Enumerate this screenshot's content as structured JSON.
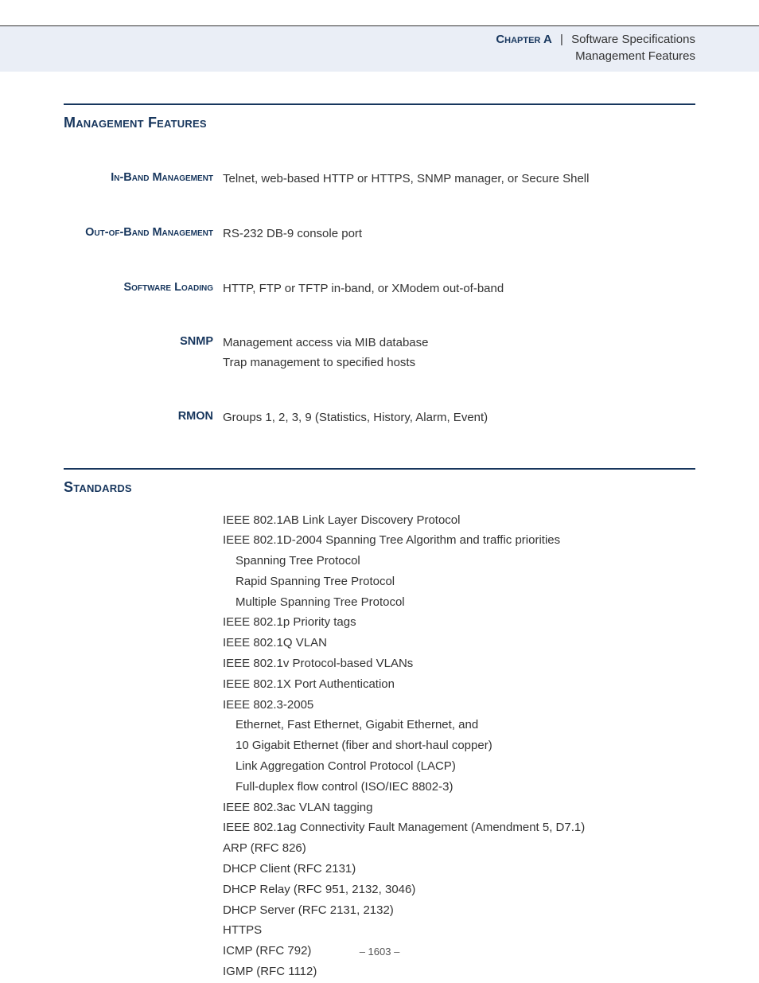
{
  "header": {
    "chapter_label": "Chapter A",
    "divider": "|",
    "crumb1": "Software Specifications",
    "crumb2": "Management Features"
  },
  "section1": {
    "heading": "Management Features",
    "rows": [
      {
        "label": "In-Band Management",
        "value": "Telnet, web-based HTTP or HTTPS, SNMP manager, or Secure Shell"
      },
      {
        "label": "Out-of-Band Management",
        "value": "RS-232 DB-9 console port"
      },
      {
        "label": "Software Loading",
        "value": "HTTP, FTP or TFTP in-band, or XModem out-of-band"
      },
      {
        "label": "SNMP",
        "value": "Management access via MIB database\nTrap management to specified hosts"
      },
      {
        "label": "RMON",
        "value": "Groups 1, 2, 3, 9 (Statistics, History, Alarm, Event)"
      }
    ]
  },
  "section2": {
    "heading": "Standards",
    "items": [
      {
        "text": "IEEE 802.1AB Link Layer Discovery Protocol",
        "indent": false
      },
      {
        "text": "IEEE 802.1D-2004 Spanning Tree Algorithm and traffic priorities",
        "indent": false
      },
      {
        "text": "Spanning Tree Protocol",
        "indent": true
      },
      {
        "text": "Rapid Spanning Tree Protocol",
        "indent": true
      },
      {
        "text": "Multiple Spanning Tree Protocol",
        "indent": true
      },
      {
        "text": "IEEE 802.1p Priority tags",
        "indent": false
      },
      {
        "text": "IEEE 802.1Q VLAN",
        "indent": false
      },
      {
        "text": "IEEE 802.1v Protocol-based VLANs",
        "indent": false
      },
      {
        "text": "IEEE 802.1X Port Authentication",
        "indent": false
      },
      {
        "text": "IEEE 802.3-2005",
        "indent": false
      },
      {
        "text": "Ethernet, Fast Ethernet, Gigabit Ethernet, and",
        "indent": true
      },
      {
        "text": "10 Gigabit Ethernet (fiber and short-haul copper)",
        "indent": true
      },
      {
        "text": "Link Aggregation Control Protocol (LACP)",
        "indent": true
      },
      {
        "text": "Full-duplex flow control (ISO/IEC 8802-3)",
        "indent": true
      },
      {
        "text": "IEEE 802.3ac VLAN tagging",
        "indent": false
      },
      {
        "text": "IEEE 802.1ag Connectivity Fault Management (Amendment 5, D7.1)",
        "indent": false
      },
      {
        "text": "ARP (RFC 826)",
        "indent": false
      },
      {
        "text": "DHCP Client (RFC 2131)",
        "indent": false
      },
      {
        "text": "DHCP Relay (RFC 951, 2132, 3046)",
        "indent": false
      },
      {
        "text": "DHCP Server (RFC 2131, 2132)",
        "indent": false
      },
      {
        "text": "HTTPS",
        "indent": false
      },
      {
        "text": "ICMP (RFC 792)",
        "indent": false
      },
      {
        "text": "IGMP (RFC 1112)",
        "indent": false
      }
    ]
  },
  "footer": {
    "page_prefix": "–  ",
    "page_number": "1603",
    "page_suffix": "  –"
  },
  "colors": {
    "heading": "#17365d",
    "band_bg": "#eaeef6",
    "rule": "#17365d",
    "body_text": "#333333"
  }
}
